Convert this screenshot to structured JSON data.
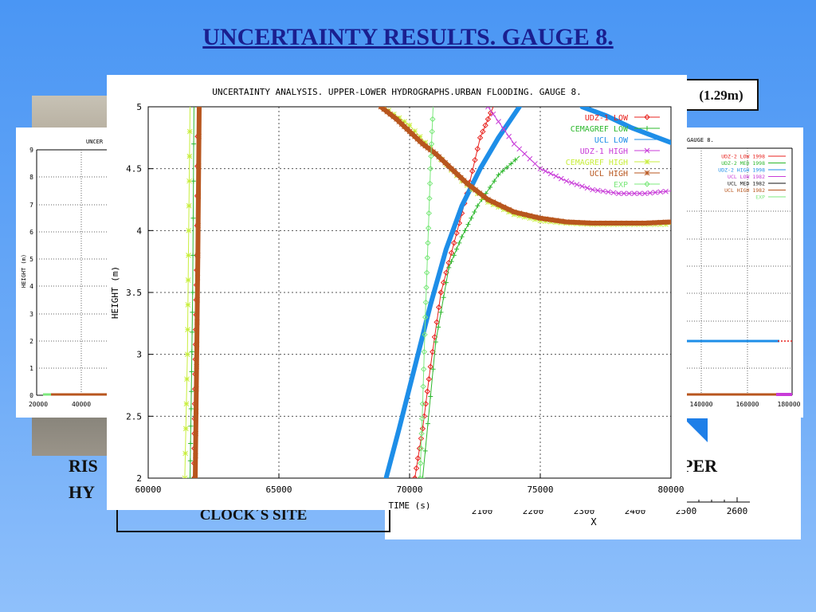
{
  "slide": {
    "title": "UNCERTAINTY RESULTS. GAUGE 8.",
    "value_box": "(1.29m)",
    "clock_site": "CLOCK´S SITE",
    "left_text_1": "RIS",
    "left_text_2": "HY",
    "right_text": "PER"
  },
  "left_chart": {
    "title": "UNCER",
    "ylabel": "HEIGHT (m)",
    "yticks": [
      "9",
      "8",
      "7",
      "6",
      "5",
      "4",
      "3",
      "2",
      "1",
      "0"
    ],
    "xticks": [
      "20000",
      "40000"
    ]
  },
  "right_chart": {
    "title": "GAUGE 8.",
    "legend": [
      {
        "label": "UDZ-2 LOW 1998",
        "color": "#e8231f"
      },
      {
        "label": "UDZ-2 MED 1998",
        "color": "#2db82d"
      },
      {
        "label": "UDZ-2 HIGH 1998",
        "color": "#1e8ee8"
      },
      {
        "label": "UCL LOW 1982",
        "color": "#c83cd8"
      },
      {
        "label": "UCL MED 1982",
        "color": "#111111"
      },
      {
        "label": "UCL HIGH 1982",
        "color": "#b8561e"
      },
      {
        "label": "EXP",
        "color": "#7ce87c"
      }
    ],
    "xticks": [
      "140000",
      "160000",
      "180000"
    ]
  },
  "bottom_chart": {
    "xticks": [
      "2100",
      "2200",
      "2300",
      "2400",
      "2500",
      "2600"
    ],
    "xlabel": "X"
  },
  "chart_data": {
    "type": "line",
    "title": "UNCERTAINTY ANALYSIS. UPPER-LOWER HYDROGRAPHS.URBAN FLOODING. GAUGE 8.",
    "xlabel": "TIME (s)",
    "ylabel": "HEIGHT (m)",
    "xlim": [
      60000,
      80000
    ],
    "ylim": [
      2,
      5
    ],
    "grid": true,
    "legend_position": "top-right",
    "xticks": [
      60000,
      65000,
      70000,
      75000,
      80000
    ],
    "yticks": [
      2,
      2.5,
      3,
      3.5,
      4,
      4.5,
      5
    ],
    "series": [
      {
        "name": "UDZ-1 LOW",
        "color": "#e8231f",
        "marker": "diamond",
        "width": 1,
        "x": [
          61750,
          61780,
          61820,
          61860,
          61900,
          70200,
          70500,
          70800,
          71200,
          71700,
          72200,
          72700,
          73200
        ],
        "y": [
          2.0,
          2.6,
          3.2,
          3.8,
          5.0,
          2.0,
          2.4,
          2.9,
          3.5,
          3.9,
          4.3,
          4.75,
          5.0
        ]
      },
      {
        "name": "CEMAGREF LOW",
        "color": "#2db82d",
        "marker": "plus",
        "width": 1,
        "x": [
          61600,
          61650,
          61700,
          61750,
          70500,
          71000,
          71500,
          72000,
          72600,
          73400,
          74200
        ],
        "y": [
          2.0,
          2.7,
          3.5,
          5.0,
          2.0,
          3.1,
          3.7,
          3.95,
          4.2,
          4.45,
          4.6
        ]
      },
      {
        "name": "UCL LOW",
        "color": "#1e8ee8",
        "marker": "none",
        "width": 6,
        "x": [
          69100,
          69600,
          70200,
          70800,
          71400,
          72000,
          72700,
          73400,
          74200
        ],
        "y": [
          2.0,
          2.4,
          2.9,
          3.4,
          3.85,
          4.2,
          4.5,
          4.75,
          5.0
        ]
      },
      {
        "name": "UDZ-1 HIGH",
        "color": "#c83cd8",
        "marker": "cross",
        "width": 1,
        "x": [
          73000,
          74000,
          75000,
          76000,
          77000,
          78000,
          79000,
          80000
        ],
        "y": [
          5.0,
          4.7,
          4.5,
          4.4,
          4.33,
          4.3,
          4.3,
          4.32
        ]
      },
      {
        "name": "CEMAGREF HIGH",
        "color": "#c8ee3c",
        "marker": "star",
        "width": 1,
        "x": [
          61400,
          61500,
          61550,
          61600,
          69000,
          70000,
          71000,
          72000,
          73000,
          74000,
          75000,
          76000,
          77000,
          78000,
          79000,
          80000
        ],
        "y": [
          2.0,
          3.0,
          4.0,
          5.0,
          5.0,
          4.85,
          4.62,
          4.4,
          4.23,
          4.13,
          4.08,
          4.06,
          4.05,
          4.05,
          4.05,
          4.05
        ]
      },
      {
        "name": "UCL HIGH",
        "color": "#b8561e",
        "marker": "star",
        "width": 6,
        "x": [
          61800,
          61850,
          61900,
          61950,
          68900,
          69500,
          70000,
          70500,
          71000,
          71600,
          72200,
          73000,
          74000,
          75000,
          76000,
          77000,
          78000,
          79000,
          80000
        ],
        "y": [
          2.0,
          2.9,
          3.8,
          5.0,
          5.0,
          4.9,
          4.8,
          4.7,
          4.62,
          4.5,
          4.38,
          4.25,
          4.15,
          4.1,
          4.07,
          4.06,
          4.06,
          4.06,
          4.07
        ]
      },
      {
        "name": "EXP",
        "color": "#7ce87c",
        "marker": "diamond",
        "width": 1,
        "x": [
          70400,
          70500,
          70600,
          70700,
          70800,
          70900
        ],
        "y": [
          2.0,
          2.6,
          3.3,
          3.9,
          4.5,
          5.0
        ]
      },
      {
        "name": "UCL LOW (upper)",
        "color": "#1e8ee8",
        "marker": "none",
        "width": 6,
        "legend": false,
        "x": [
          76600,
          77500,
          78500,
          79500,
          80000
        ],
        "y": [
          5.0,
          4.93,
          4.83,
          4.75,
          4.71
        ]
      }
    ]
  }
}
